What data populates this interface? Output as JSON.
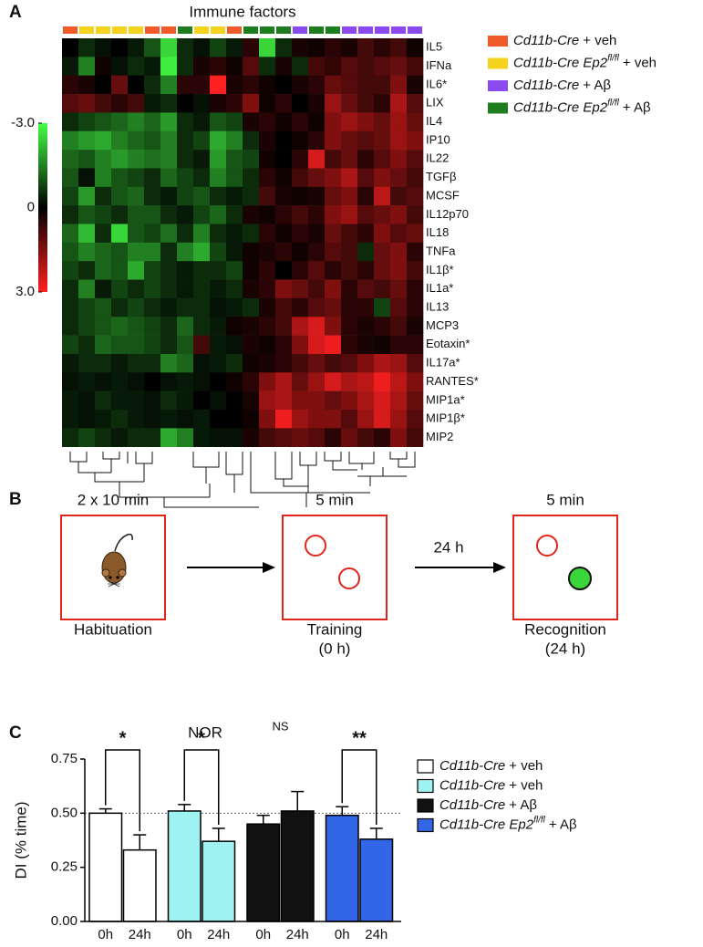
{
  "panel_labels": [
    "A",
    "B",
    "C"
  ],
  "chart_data": [
    {
      "type": "heatmap",
      "title": "Immune factors",
      "rows": [
        "IL5",
        "IFNa",
        "IL6*",
        "LIX",
        "IL4",
        "IP10",
        "IL22",
        "TGFβ",
        "MCSF",
        "IL12p70",
        "IL18",
        "TNFa",
        "IL1β*",
        "IL1a*",
        "IL13",
        "MCP3",
        "Eotaxin*",
        "IL17a*",
        "RANTES*",
        "MIP1a*",
        "MIP1β*",
        "MIP2"
      ],
      "groups": [
        {
          "name": "Cd11b-Cre",
          "treatment": "+ veh",
          "color": "#f05a28"
        },
        {
          "name": "Cd11b-Cre Ep2",
          "sup": "fl/fl",
          "treatment": "+ veh",
          "color": "#f5d21e"
        },
        {
          "name": "Cd11b-Cre",
          "treatment": "+ Aβ",
          "color": "#8c4bf0"
        },
        {
          "name": "Cd11b-Cre Ep2",
          "sup": "fl/fl",
          "treatment": "+ Aβ",
          "color": "#1e7d1e"
        }
      ],
      "column_groups": [
        0,
        1,
        1,
        1,
        1,
        0,
        0,
        3,
        1,
        1,
        0,
        3,
        3,
        3,
        2,
        3,
        3,
        2,
        2,
        2,
        2,
        2
      ],
      "values": [
        [
          0,
          -0.5,
          -0.2,
          0,
          -0.3,
          -1,
          -2.5,
          -0.5,
          -0.2,
          -0.8,
          -0.3,
          0.5,
          -2.5,
          -0.5,
          0.3,
          0.2,
          0.5,
          0.3,
          0.8,
          0.5,
          0.8,
          0.2
        ],
        [
          -0.3,
          -1.5,
          0.2,
          -0.2,
          -0.5,
          -0.3,
          -2.8,
          -0.5,
          0.3,
          0.5,
          0.2,
          1,
          -0.5,
          0.3,
          -0.5,
          0.8,
          0.6,
          1,
          0.8,
          1,
          1.2,
          0.8
        ],
        [
          0.5,
          0.3,
          0,
          1.2,
          0,
          -0.5,
          -1.5,
          0.5,
          0.5,
          3,
          0.3,
          0.5,
          0.2,
          0,
          0.3,
          0.5,
          1.2,
          1,
          0.8,
          0.8,
          1.5,
          0.3
        ],
        [
          1,
          1.2,
          0.8,
          0.5,
          0.8,
          -0.3,
          -0.5,
          0,
          -0.2,
          0.3,
          0.5,
          1.5,
          0.2,
          0.5,
          0,
          0.3,
          1.8,
          1.2,
          0.8,
          0.5,
          2,
          1
        ],
        [
          -0.5,
          -0.8,
          -1,
          -1.2,
          -1.5,
          -1.2,
          -1.8,
          -0.5,
          -0.3,
          -1,
          -0.8,
          0.3,
          0.5,
          0.2,
          0.5,
          0.2,
          1.5,
          1.8,
          1.5,
          1.2,
          1.8,
          1.2
        ],
        [
          -1.5,
          -1.8,
          -2,
          -1.5,
          -1.2,
          -1,
          -1.5,
          -0.5,
          -0.8,
          -2,
          -1.5,
          -0.5,
          0.3,
          0,
          0.2,
          0.5,
          1.5,
          1.2,
          1,
          1.2,
          1.8,
          1.5
        ],
        [
          -1.2,
          -1,
          -1.5,
          -1.8,
          -1.5,
          -1.3,
          -1.5,
          -0.5,
          -0.3,
          -1.8,
          -1,
          -0.8,
          0.2,
          0,
          0.5,
          2.5,
          0.8,
          1.2,
          0.5,
          1,
          1.5,
          1
        ],
        [
          -1,
          -0.2,
          -1.5,
          -1,
          -0.8,
          -0.5,
          -1.2,
          -0.8,
          -0.5,
          -1.5,
          -1,
          -0.5,
          0.5,
          0.2,
          0.8,
          1.2,
          1.5,
          2,
          1,
          1.5,
          1.2,
          0.8
        ],
        [
          -0.8,
          -1.8,
          -0.5,
          -1,
          -1.2,
          -0.5,
          -0.3,
          -0.8,
          -1,
          -0.5,
          -0.3,
          -0.5,
          0.8,
          0.3,
          0.2,
          0.3,
          1.2,
          1.5,
          0.5,
          2.2,
          0.8,
          1
        ],
        [
          -0.5,
          -1,
          -0.8,
          -0.5,
          -1,
          -1,
          -0.5,
          -0.3,
          -0.8,
          -1.2,
          -0.5,
          0.3,
          0.2,
          0.5,
          0.8,
          0.5,
          1.5,
          1.8,
          1,
          1.2,
          1.5,
          0.8
        ],
        [
          -1.2,
          -2.2,
          -0.5,
          -2.5,
          -1,
          -0.8,
          -1.3,
          -0.5,
          -1.5,
          -0.5,
          -0.3,
          -0.5,
          0.5,
          0.2,
          0.5,
          0.3,
          1.2,
          0.8,
          0.5,
          1.5,
          1,
          1.2
        ],
        [
          -1,
          -1.5,
          -1.2,
          -1,
          -1.5,
          -1.5,
          -0.5,
          -1.5,
          -2,
          -0.8,
          -0.3,
          0.2,
          0.3,
          0.5,
          0.2,
          0.5,
          1,
          0.8,
          -0.5,
          1.2,
          1.5,
          0.5
        ],
        [
          -0.8,
          -0.5,
          -1.2,
          -1,
          -2,
          -0.8,
          -0.5,
          -0.3,
          -0.5,
          -0.5,
          -0.8,
          0.2,
          0.5,
          0,
          0.5,
          1,
          0.5,
          0.8,
          0.5,
          1.2,
          1.5,
          0.8
        ],
        [
          -0.5,
          -1.5,
          -0.3,
          -0.8,
          -0.5,
          -0.8,
          -0.5,
          -0.3,
          -0.5,
          -0.3,
          -0.5,
          0.3,
          0.5,
          1.5,
          1.2,
          0.8,
          1.5,
          0.5,
          1,
          0.8,
          1.2,
          0.5
        ],
        [
          -0.5,
          -0.8,
          -1,
          -0.5,
          -0.8,
          -0.5,
          -0.3,
          -0.5,
          -0.5,
          -0.2,
          -0.3,
          -0.5,
          0.3,
          0.8,
          0.5,
          1,
          1.2,
          0.5,
          0.5,
          -0.8,
          1,
          0.5
        ],
        [
          -0.5,
          -0.8,
          -1,
          -1.2,
          -1,
          -0.8,
          -0.5,
          -1.2,
          -0.5,
          -0.3,
          0.2,
          0.3,
          0.5,
          0.8,
          2,
          2.5,
          1.5,
          0.5,
          0.3,
          0.5,
          0.8,
          0.3
        ],
        [
          -0.8,
          -0.5,
          -1.2,
          -1,
          -1,
          -0.8,
          -0.5,
          -1,
          0.8,
          -0.3,
          -0.2,
          0.3,
          0.2,
          0.5,
          1.5,
          2.5,
          2.8,
          0.5,
          0.3,
          0.2,
          0.5,
          0.5
        ],
        [
          -0.3,
          -0.5,
          -0.5,
          -0.3,
          -0.5,
          -0.5,
          -1.5,
          -1.2,
          -0.2,
          -0.3,
          -0.5,
          0.2,
          0.3,
          0.5,
          0.8,
          1.2,
          0.8,
          1,
          1.5,
          2,
          1.8,
          1
        ],
        [
          -0.2,
          -0.3,
          -0.2,
          -0.3,
          -0.2,
          0,
          -0.2,
          -0.3,
          -0.2,
          0,
          0.2,
          0.5,
          1.5,
          2,
          1.2,
          1.8,
          2.5,
          2,
          2.2,
          2.8,
          2.2,
          1.5
        ],
        [
          -0.3,
          -0.2,
          -0.5,
          -0.3,
          -0.3,
          -0.2,
          -0.5,
          -0.3,
          0,
          -0.2,
          0,
          0.3,
          1.8,
          2,
          1.5,
          1.5,
          1.2,
          1.5,
          2,
          2.5,
          2,
          1.2
        ],
        [
          -0.3,
          -0.2,
          -0.3,
          -0.5,
          -0.3,
          -0.2,
          -0.3,
          -0.2,
          -0.3,
          0,
          0,
          0.2,
          1.5,
          2.8,
          1.8,
          1.5,
          1.5,
          1,
          1.8,
          2.5,
          1.8,
          1
        ],
        [
          -0.5,
          -0.8,
          -0.5,
          -0.3,
          -0.5,
          -0.5,
          -2,
          -1.5,
          -0.3,
          -0.2,
          -0.2,
          0.3,
          0.8,
          1,
          1.2,
          1,
          0.5,
          1.2,
          0.8,
          0.5,
          1.5,
          0.8
        ]
      ],
      "colorbar": {
        "lim": [
          -3,
          3
        ],
        "ticks": [
          {
            "value": -3,
            "label": "-3.0"
          },
          0,
          {
            "value": 3,
            "label": "3.0"
          }
        ],
        "low_color": "#44ff44",
        "high_color": "#ff2020"
      }
    },
    {
      "type": "bar",
      "title": "NOR",
      "y_label": "DI (% time)",
      "categories": [
        "0h",
        "24h"
      ],
      "ylim": [
        0,
        0.75
      ],
      "yticks": [
        {
          "value": 0,
          "label": "0.00"
        },
        {
          "value": 0.25,
          "label": "0.25"
        },
        {
          "value": 0.5,
          "label": "0.50"
        },
        {
          "value": 0.75,
          "label": "0.75"
        }
      ],
      "reference_line": 0.5,
      "series": [
        {
          "name": "Cd11b-Cre",
          "treatment": "+ veh",
          "color": "#ffffff",
          "values": [
            0.5,
            0.33
          ],
          "errors": [
            0.02,
            0.07
          ],
          "significance": "*",
          "bracket": true
        },
        {
          "name": "Cd11b-Cre",
          "treatment": "+ veh",
          "color": "#9ff2f2",
          "values": [
            0.51,
            0.37
          ],
          "errors": [
            0.03,
            0.06
          ],
          "significance": "*",
          "bracket": true
        },
        {
          "name": "Cd11b-Cre",
          "treatment": "+ Aβ",
          "color": "#111111",
          "values": [
            0.45,
            0.51
          ],
          "errors": [
            0.04,
            0.09
          ],
          "significance": "NS",
          "bracket": false
        },
        {
          "name": "Cd11b-Cre Ep2",
          "sup": "fl/fl",
          "treatment": "+ Aβ",
          "color": "#3366e6",
          "values": [
            0.49,
            0.38
          ],
          "errors": [
            0.04,
            0.05
          ],
          "significance": "**",
          "bracket": true
        }
      ]
    }
  ],
  "diagram": {
    "steps": [
      {
        "duration": "2 x 10 min",
        "label": "Habituation"
      },
      {
        "duration": "5 min",
        "label": "Training",
        "sublabel": "(0 h)"
      },
      {
        "duration": "5 min",
        "label": "Recognition",
        "sublabel": "(24 h)"
      }
    ],
    "delay": "24 h"
  }
}
